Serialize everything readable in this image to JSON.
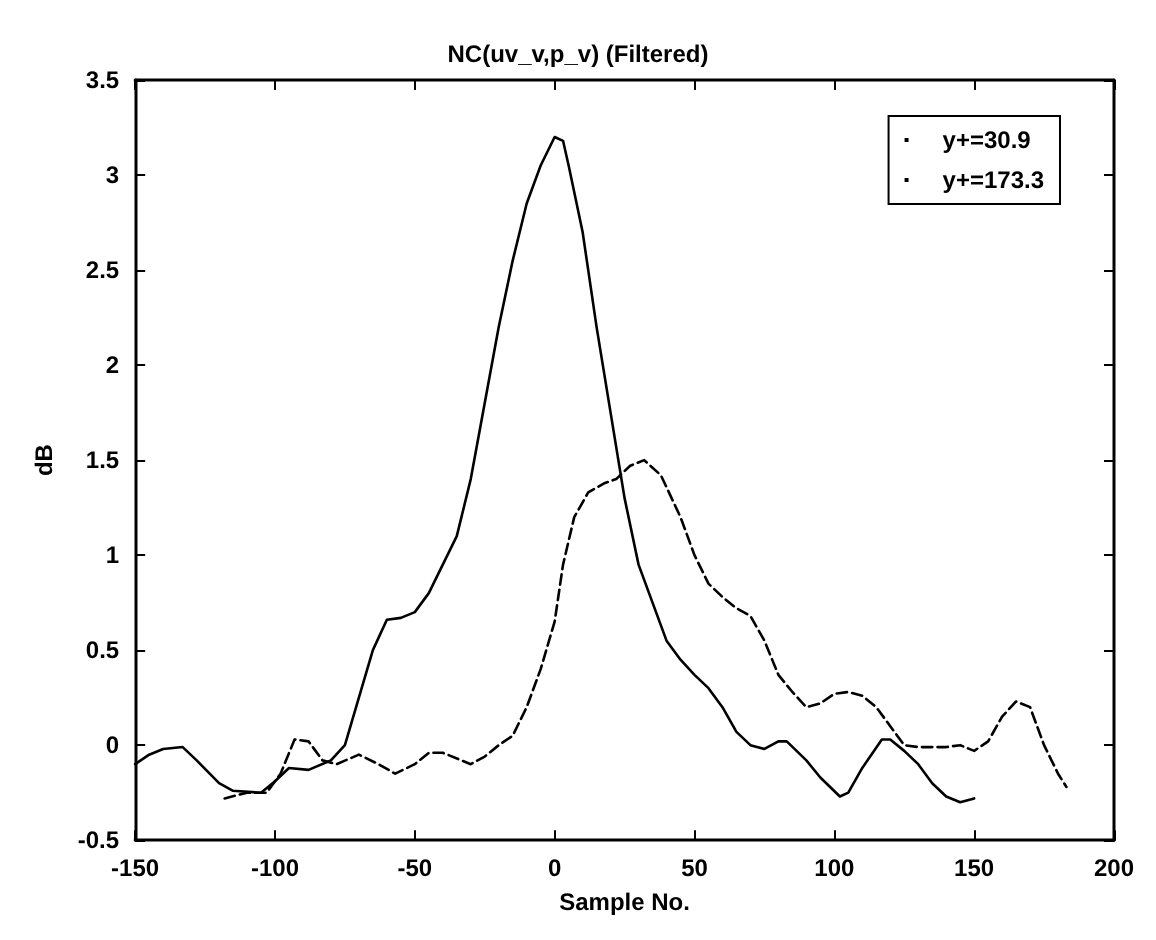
{
  "chart_data": {
    "type": "line",
    "title": "NC(uv_v,p_v) (Filtered)",
    "xlabel": "Sample No.",
    "ylabel": "dB",
    "xlim": [
      -150,
      200
    ],
    "xticks": [
      -150,
      -100,
      -50,
      0,
      50,
      100,
      150,
      200
    ],
    "ylim": [
      -0.5,
      3.5
    ],
    "yticks": [
      -0.5,
      0,
      0.5,
      1,
      1.5,
      2,
      2.5,
      3,
      3.5
    ],
    "grid": false,
    "legend": "top right",
    "marker": "none",
    "series": [
      {
        "name": "y+=30.9",
        "color": "#000000",
        "line_style": "solid",
        "x": [
          -150,
          -145,
          -140,
          -133,
          -128,
          -120,
          -115,
          -105,
          -100,
          -95,
          -88,
          -80,
          -75,
          -70,
          -65,
          -60,
          -55,
          -50,
          -45,
          -40,
          -35,
          -30,
          -25,
          -20,
          -15,
          -10,
          -5,
          0,
          3,
          5,
          10,
          15,
          20,
          25,
          30,
          35,
          40,
          45,
          50,
          55,
          60,
          65,
          70,
          75,
          80,
          83,
          90,
          95,
          102,
          105,
          110,
          117,
          120,
          125,
          130,
          135,
          140,
          145,
          150
        ],
        "values": [
          -0.1,
          -0.05,
          -0.02,
          -0.01,
          -0.08,
          -0.2,
          -0.24,
          -0.25,
          -0.19,
          -0.12,
          -0.13,
          -0.08,
          0.0,
          0.25,
          0.5,
          0.66,
          0.67,
          0.7,
          0.8,
          0.95,
          1.1,
          1.4,
          1.8,
          2.2,
          2.55,
          2.85,
          3.05,
          3.2,
          3.18,
          3.05,
          2.7,
          2.2,
          1.75,
          1.3,
          0.95,
          0.75,
          0.55,
          0.45,
          0.37,
          0.3,
          0.2,
          0.07,
          0.0,
          -0.02,
          0.02,
          0.02,
          -0.08,
          -0.17,
          -0.27,
          -0.25,
          -0.12,
          0.03,
          0.03,
          -0.03,
          -0.1,
          -0.2,
          -0.27,
          -0.3,
          -0.28
        ]
      },
      {
        "name": "y+=173.3",
        "color": "#000000",
        "line_style": "dashed",
        "x": [
          -118,
          -110,
          -103,
          -98,
          -93,
          -88,
          -83,
          -78,
          -70,
          -63,
          -57,
          -50,
          -45,
          -40,
          -30,
          -25,
          -20,
          -15,
          -10,
          -5,
          0,
          3,
          7,
          12,
          18,
          22,
          27,
          32,
          38,
          45,
          50,
          55,
          60,
          65,
          70,
          75,
          80,
          85,
          90,
          95,
          100,
          105,
          110,
          115,
          120,
          125,
          130,
          140,
          145,
          150,
          155,
          160,
          165,
          170,
          175,
          180,
          183
        ],
        "values": [
          -0.28,
          -0.25,
          -0.25,
          -0.15,
          0.03,
          0.02,
          -0.08,
          -0.1,
          -0.05,
          -0.1,
          -0.15,
          -0.1,
          -0.04,
          -0.04,
          -0.1,
          -0.06,
          0.0,
          0.05,
          0.2,
          0.4,
          0.65,
          0.95,
          1.2,
          1.33,
          1.38,
          1.4,
          1.47,
          1.5,
          1.42,
          1.2,
          1.0,
          0.85,
          0.78,
          0.72,
          0.68,
          0.55,
          0.37,
          0.28,
          0.2,
          0.22,
          0.27,
          0.28,
          0.26,
          0.2,
          0.1,
          0.0,
          -0.01,
          -0.01,
          0.0,
          -0.03,
          0.02,
          0.15,
          0.23,
          0.2,
          0.0,
          -0.15,
          -0.22
        ]
      }
    ]
  }
}
